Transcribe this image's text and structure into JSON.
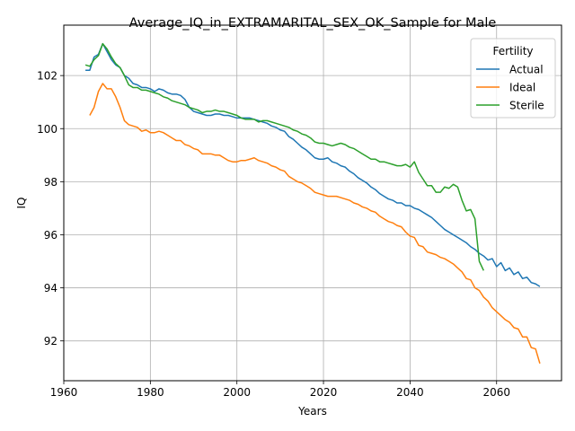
{
  "chart_data": {
    "type": "line",
    "title": "Average_IQ_in_EXTRAMARITAL_SEX_OK_Sample for Male",
    "xlabel": "Years",
    "ylabel": "IQ",
    "xlim": [
      1960,
      2075
    ],
    "ylim": [
      90.5,
      103.9
    ],
    "xticks": [
      1960,
      1980,
      2000,
      2020,
      2040,
      2060
    ],
    "yticks": [
      92,
      94,
      96,
      98,
      100,
      102
    ],
    "grid": true,
    "legend": {
      "title": "Fertility",
      "placement": "top-right"
    },
    "series": [
      {
        "name": "Actual",
        "color": "#1f77b4",
        "points": [
          [
            1965,
            102.2
          ],
          [
            1966,
            102.2
          ],
          [
            1967,
            102.7
          ],
          [
            1968,
            102.8
          ],
          [
            1969,
            103.2
          ],
          [
            1970,
            102.9
          ],
          [
            1971,
            102.6
          ],
          [
            1972,
            102.4
          ],
          [
            1973,
            102.3
          ],
          [
            1974,
            102.0
          ],
          [
            1975,
            101.9
          ],
          [
            1976,
            101.7
          ],
          [
            1977,
            101.65
          ],
          [
            1978,
            101.55
          ],
          [
            1979,
            101.55
          ],
          [
            1980,
            101.5
          ],
          [
            1981,
            101.4
          ],
          [
            1982,
            101.5
          ],
          [
            1983,
            101.45
          ],
          [
            1984,
            101.35
          ],
          [
            1985,
            101.3
          ],
          [
            1986,
            101.3
          ],
          [
            1987,
            101.25
          ],
          [
            1988,
            101.1
          ],
          [
            1989,
            100.8
          ],
          [
            1990,
            100.65
          ],
          [
            1991,
            100.6
          ],
          [
            1992,
            100.55
          ],
          [
            1993,
            100.5
          ],
          [
            1994,
            100.5
          ],
          [
            1995,
            100.55
          ],
          [
            1996,
            100.55
          ],
          [
            1997,
            100.5
          ],
          [
            1998,
            100.5
          ],
          [
            1999,
            100.45
          ],
          [
            2000,
            100.4
          ],
          [
            2001,
            100.4
          ],
          [
            2002,
            100.4
          ],
          [
            2003,
            100.4
          ],
          [
            2004,
            100.35
          ],
          [
            2005,
            100.3
          ],
          [
            2006,
            100.25
          ],
          [
            2007,
            100.2
          ],
          [
            2008,
            100.1
          ],
          [
            2009,
            100.05
          ],
          [
            2010,
            99.95
          ],
          [
            2011,
            99.9
          ],
          [
            2012,
            99.7
          ],
          [
            2013,
            99.6
          ],
          [
            2014,
            99.45
          ],
          [
            2015,
            99.3
          ],
          [
            2016,
            99.2
          ],
          [
            2017,
            99.05
          ],
          [
            2018,
            98.9
          ],
          [
            2019,
            98.85
          ],
          [
            2020,
            98.85
          ],
          [
            2021,
            98.9
          ],
          [
            2022,
            98.75
          ],
          [
            2023,
            98.7
          ],
          [
            2024,
            98.6
          ],
          [
            2025,
            98.55
          ],
          [
            2026,
            98.4
          ],
          [
            2027,
            98.3
          ],
          [
            2028,
            98.15
          ],
          [
            2029,
            98.05
          ],
          [
            2030,
            97.95
          ],
          [
            2031,
            97.8
          ],
          [
            2032,
            97.7
          ],
          [
            2033,
            97.55
          ],
          [
            2034,
            97.45
          ],
          [
            2035,
            97.35
          ],
          [
            2036,
            97.3
          ],
          [
            2037,
            97.2
          ],
          [
            2038,
            97.2
          ],
          [
            2039,
            97.1
          ],
          [
            2040,
            97.1
          ],
          [
            2041,
            97.0
          ],
          [
            2042,
            96.95
          ],
          [
            2043,
            96.85
          ],
          [
            2044,
            96.75
          ],
          [
            2045,
            96.65
          ],
          [
            2046,
            96.5
          ],
          [
            2047,
            96.35
          ],
          [
            2048,
            96.2
          ],
          [
            2049,
            96.1
          ],
          [
            2050,
            96.0
          ],
          [
            2051,
            95.9
          ],
          [
            2052,
            95.8
          ],
          [
            2053,
            95.7
          ],
          [
            2054,
            95.55
          ],
          [
            2055,
            95.45
          ],
          [
            2056,
            95.3
          ],
          [
            2057,
            95.2
          ],
          [
            2058,
            95.05
          ],
          [
            2059,
            95.1
          ],
          [
            2060,
            94.8
          ],
          [
            2061,
            94.95
          ],
          [
            2062,
            94.65
          ],
          [
            2063,
            94.75
          ],
          [
            2064,
            94.5
          ],
          [
            2065,
            94.6
          ],
          [
            2066,
            94.35
          ],
          [
            2067,
            94.4
          ],
          [
            2068,
            94.2
          ],
          [
            2069,
            94.15
          ],
          [
            2070,
            94.05
          ]
        ]
      },
      {
        "name": "Ideal",
        "color": "#ff7f0e",
        "points": [
          [
            1966,
            100.5
          ],
          [
            1967,
            100.8
          ],
          [
            1968,
            101.4
          ],
          [
            1969,
            101.7
          ],
          [
            1970,
            101.5
          ],
          [
            1971,
            101.5
          ],
          [
            1972,
            101.2
          ],
          [
            1973,
            100.8
          ],
          [
            1974,
            100.3
          ],
          [
            1975,
            100.15
          ],
          [
            1976,
            100.1
          ],
          [
            1977,
            100.05
          ],
          [
            1978,
            99.9
          ],
          [
            1979,
            99.95
          ],
          [
            1980,
            99.85
          ],
          [
            1981,
            99.85
          ],
          [
            1982,
            99.9
          ],
          [
            1983,
            99.85
          ],
          [
            1984,
            99.75
          ],
          [
            1985,
            99.65
          ],
          [
            1986,
            99.55
          ],
          [
            1987,
            99.55
          ],
          [
            1988,
            99.4
          ],
          [
            1989,
            99.35
          ],
          [
            1990,
            99.25
          ],
          [
            1991,
            99.2
          ],
          [
            1992,
            99.05
          ],
          [
            1993,
            99.05
          ],
          [
            1994,
            99.05
          ],
          [
            1995,
            99.0
          ],
          [
            1996,
            99.0
          ],
          [
            1997,
            98.9
          ],
          [
            1998,
            98.8
          ],
          [
            1999,
            98.75
          ],
          [
            2000,
            98.75
          ],
          [
            2001,
            98.8
          ],
          [
            2002,
            98.8
          ],
          [
            2003,
            98.85
          ],
          [
            2004,
            98.9
          ],
          [
            2005,
            98.8
          ],
          [
            2006,
            98.75
          ],
          [
            2007,
            98.7
          ],
          [
            2008,
            98.6
          ],
          [
            2009,
            98.55
          ],
          [
            2010,
            98.45
          ],
          [
            2011,
            98.4
          ],
          [
            2012,
            98.2
          ],
          [
            2013,
            98.1
          ],
          [
            2014,
            98.0
          ],
          [
            2015,
            97.95
          ],
          [
            2016,
            97.85
          ],
          [
            2017,
            97.75
          ],
          [
            2018,
            97.6
          ],
          [
            2019,
            97.55
          ],
          [
            2020,
            97.5
          ],
          [
            2021,
            97.45
          ],
          [
            2022,
            97.45
          ],
          [
            2023,
            97.45
          ],
          [
            2024,
            97.4
          ],
          [
            2025,
            97.35
          ],
          [
            2026,
            97.3
          ],
          [
            2027,
            97.2
          ],
          [
            2028,
            97.15
          ],
          [
            2029,
            97.05
          ],
          [
            2030,
            97.0
          ],
          [
            2031,
            96.9
          ],
          [
            2032,
            96.85
          ],
          [
            2033,
            96.7
          ],
          [
            2034,
            96.6
          ],
          [
            2035,
            96.5
          ],
          [
            2036,
            96.45
          ],
          [
            2037,
            96.35
          ],
          [
            2038,
            96.3
          ],
          [
            2039,
            96.1
          ],
          [
            2040,
            95.95
          ],
          [
            2041,
            95.9
          ],
          [
            2042,
            95.6
          ],
          [
            2043,
            95.55
          ],
          [
            2044,
            95.35
          ],
          [
            2045,
            95.3
          ],
          [
            2046,
            95.25
          ],
          [
            2047,
            95.15
          ],
          [
            2048,
            95.1
          ],
          [
            2049,
            95.0
          ],
          [
            2050,
            94.9
          ],
          [
            2051,
            94.75
          ],
          [
            2052,
            94.6
          ],
          [
            2053,
            94.35
          ],
          [
            2054,
            94.3
          ],
          [
            2055,
            94.0
          ],
          [
            2056,
            93.9
          ],
          [
            2057,
            93.65
          ],
          [
            2058,
            93.5
          ],
          [
            2059,
            93.25
          ],
          [
            2060,
            93.1
          ],
          [
            2061,
            92.95
          ],
          [
            2062,
            92.8
          ],
          [
            2063,
            92.7
          ],
          [
            2064,
            92.5
          ],
          [
            2065,
            92.45
          ],
          [
            2066,
            92.15
          ],
          [
            2067,
            92.15
          ],
          [
            2068,
            91.75
          ],
          [
            2069,
            91.7
          ],
          [
            2070,
            91.15
          ]
        ]
      },
      {
        "name": "Sterile",
        "color": "#2ca02c",
        "points": [
          [
            1965,
            102.4
          ],
          [
            1966,
            102.35
          ],
          [
            1967,
            102.6
          ],
          [
            1968,
            102.75
          ],
          [
            1969,
            103.2
          ],
          [
            1970,
            103.0
          ],
          [
            1971,
            102.7
          ],
          [
            1972,
            102.45
          ],
          [
            1973,
            102.3
          ],
          [
            1974,
            102.0
          ],
          [
            1975,
            101.65
          ],
          [
            1976,
            101.55
          ],
          [
            1977,
            101.55
          ],
          [
            1978,
            101.45
          ],
          [
            1979,
            101.45
          ],
          [
            1980,
            101.4
          ],
          [
            1981,
            101.35
          ],
          [
            1982,
            101.3
          ],
          [
            1983,
            101.2
          ],
          [
            1984,
            101.15
          ],
          [
            1985,
            101.05
          ],
          [
            1986,
            101.0
          ],
          [
            1987,
            100.95
          ],
          [
            1988,
            100.9
          ],
          [
            1989,
            100.8
          ],
          [
            1990,
            100.75
          ],
          [
            1991,
            100.7
          ],
          [
            1992,
            100.6
          ],
          [
            1993,
            100.65
          ],
          [
            1994,
            100.65
          ],
          [
            1995,
            100.7
          ],
          [
            1996,
            100.65
          ],
          [
            1997,
            100.65
          ],
          [
            1998,
            100.6
          ],
          [
            1999,
            100.55
          ],
          [
            2000,
            100.5
          ],
          [
            2001,
            100.4
          ],
          [
            2002,
            100.35
          ],
          [
            2003,
            100.35
          ],
          [
            2004,
            100.35
          ],
          [
            2005,
            100.25
          ],
          [
            2006,
            100.3
          ],
          [
            2007,
            100.3
          ],
          [
            2008,
            100.25
          ],
          [
            2009,
            100.2
          ],
          [
            2010,
            100.15
          ],
          [
            2011,
            100.1
          ],
          [
            2012,
            100.05
          ],
          [
            2013,
            99.95
          ],
          [
            2014,
            99.9
          ],
          [
            2015,
            99.8
          ],
          [
            2016,
            99.75
          ],
          [
            2017,
            99.65
          ],
          [
            2018,
            99.5
          ],
          [
            2019,
            99.45
          ],
          [
            2020,
            99.45
          ],
          [
            2021,
            99.4
          ],
          [
            2022,
            99.35
          ],
          [
            2023,
            99.4
          ],
          [
            2024,
            99.45
          ],
          [
            2025,
            99.4
          ],
          [
            2026,
            99.3
          ],
          [
            2027,
            99.25
          ],
          [
            2028,
            99.15
          ],
          [
            2029,
            99.05
          ],
          [
            2030,
            98.95
          ],
          [
            2031,
            98.85
          ],
          [
            2032,
            98.85
          ],
          [
            2033,
            98.75
          ],
          [
            2034,
            98.75
          ],
          [
            2035,
            98.7
          ],
          [
            2036,
            98.65
          ],
          [
            2037,
            98.6
          ],
          [
            2038,
            98.6
          ],
          [
            2039,
            98.65
          ],
          [
            2040,
            98.55
          ],
          [
            2041,
            98.75
          ],
          [
            2042,
            98.35
          ],
          [
            2043,
            98.1
          ],
          [
            2044,
            97.85
          ],
          [
            2045,
            97.85
          ],
          [
            2046,
            97.6
          ],
          [
            2047,
            97.6
          ],
          [
            2048,
            97.8
          ],
          [
            2049,
            97.75
          ],
          [
            2050,
            97.9
          ],
          [
            2051,
            97.8
          ],
          [
            2052,
            97.3
          ],
          [
            2053,
            96.9
          ],
          [
            2054,
            96.95
          ],
          [
            2055,
            96.6
          ],
          [
            2056,
            95.0
          ],
          [
            2057,
            94.65
          ]
        ]
      }
    ]
  }
}
